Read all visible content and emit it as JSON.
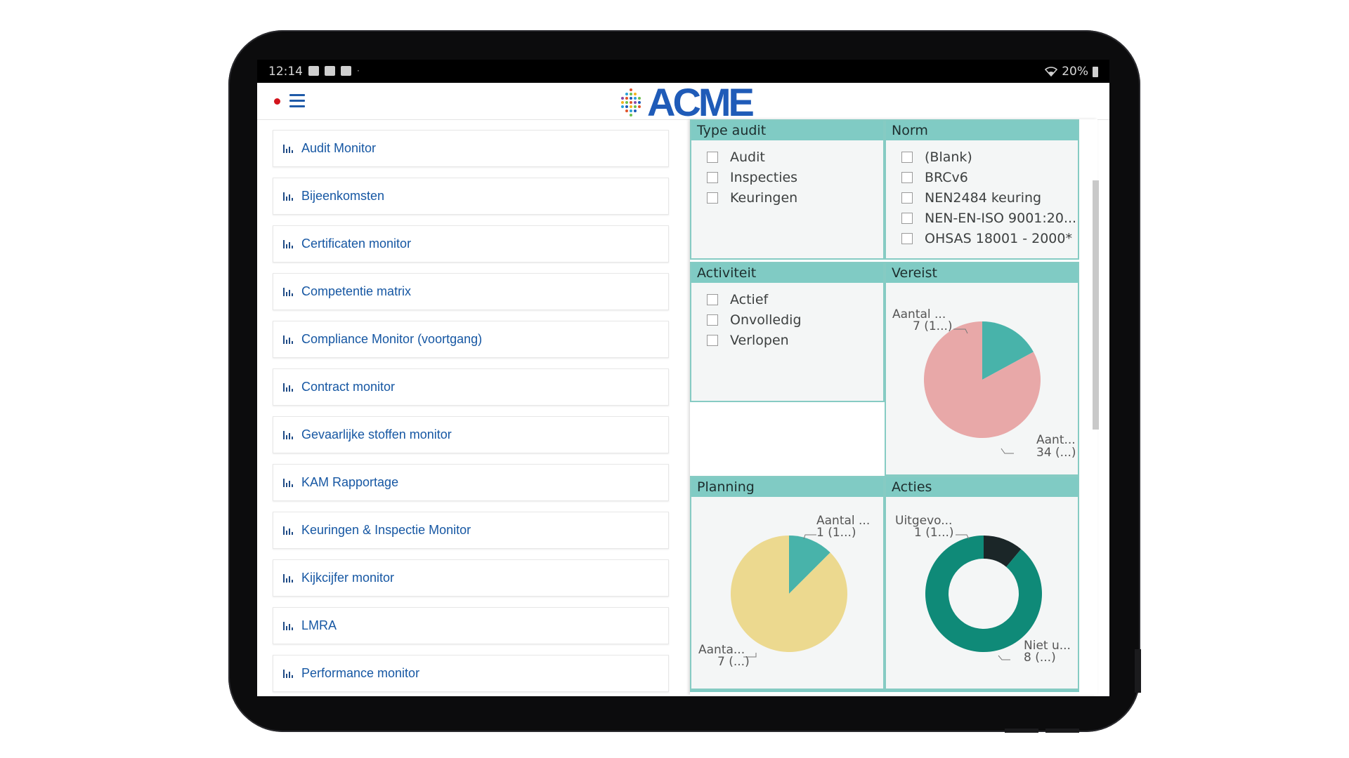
{
  "status_bar": {
    "time": "12:14",
    "battery": "20%"
  },
  "app_bar": {
    "logo_text": "ACME",
    "brand_color": "#1f5bb8",
    "notification_color": "#d3141c"
  },
  "menu": {
    "items": [
      {
        "label": "Audit Monitor"
      },
      {
        "label": "Bijeenkomsten"
      },
      {
        "label": "Certificaten monitor"
      },
      {
        "label": "Competentie matrix"
      },
      {
        "label": "Compliance Monitor (voortgang)"
      },
      {
        "label": "Contract monitor"
      },
      {
        "label": "Gevaarlijke stoffen monitor"
      },
      {
        "label": "KAM Rapportage"
      },
      {
        "label": "Keuringen & Inspectie Monitor"
      },
      {
        "label": "Kijkcijfer monitor"
      },
      {
        "label": "LMRA"
      },
      {
        "label": "Performance monitor"
      }
    ]
  },
  "dashboard": {
    "type_audit": {
      "title": "Type audit",
      "options": [
        "Audit",
        "Inspecties",
        "Keuringen"
      ]
    },
    "norm": {
      "title": "Norm",
      "options": [
        "(Blank)",
        "BRCv6",
        "NEN2484 keuring",
        "NEN-EN-ISO 9001:20...",
        "OHSAS 18001 - 2000*"
      ]
    },
    "activiteit": {
      "title": "Activiteit",
      "options": [
        "Actief",
        "Onvolledig",
        "Verlopen"
      ]
    },
    "vereist": {
      "title": "Vereist",
      "label_a_name": "Aantal ...",
      "label_a_value": "7 (1...)",
      "label_b_name": "Aant...",
      "label_b_value": "34 (...)"
    },
    "planning": {
      "title": "Planning",
      "label_a_name": "Aantal ...",
      "label_a_value": "1 (1...)",
      "label_b_name": "Aanta...",
      "label_b_value": "7 (...)"
    },
    "acties": {
      "title": "Acties",
      "label_a_name": "Uitgevo...",
      "label_a_value": "1 (1...)",
      "label_b_name": "Niet u...",
      "label_b_value": "8 (...)"
    }
  },
  "chart_data": [
    {
      "type": "pie",
      "title": "Vereist",
      "values": [
        7,
        34
      ],
      "colors": [
        "#48b3aa",
        "#e8a8a8"
      ]
    },
    {
      "type": "pie",
      "title": "Planning",
      "values": [
        1,
        7
      ],
      "colors": [
        "#48b3aa",
        "#ecd98f"
      ]
    },
    {
      "type": "pie",
      "title": "Acties",
      "donut": true,
      "values": [
        1,
        8
      ],
      "colors": [
        "#1b2628",
        "#0f8a78"
      ]
    }
  ]
}
